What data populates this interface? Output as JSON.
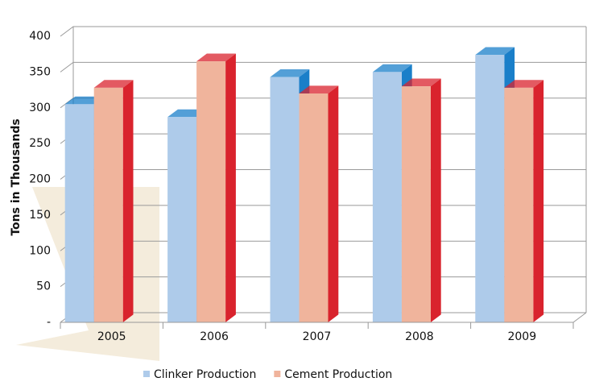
{
  "chart_data": {
    "type": "bar3d",
    "y_label": "Tons in Thousands",
    "categories": [
      "2005",
      "2006",
      "2007",
      "2008",
      "2009"
    ],
    "series": [
      {
        "name": "Clinker Production",
        "color": "#aecbea",
        "side_color": "#1a7fc9",
        "values": [
          305,
          287,
          343,
          350,
          374
        ]
      },
      {
        "name": "Cement Production",
        "color": "#f0b49c",
        "side_color": "#d9232d",
        "values": [
          328,
          365,
          320,
          330,
          328
        ]
      }
    ],
    "ylim": [
      0,
      400
    ],
    "yticks": [
      {
        "value": 0,
        "label": "-"
      },
      50,
      100,
      150,
      200,
      250,
      300,
      350,
      400
    ],
    "grid": true
  }
}
